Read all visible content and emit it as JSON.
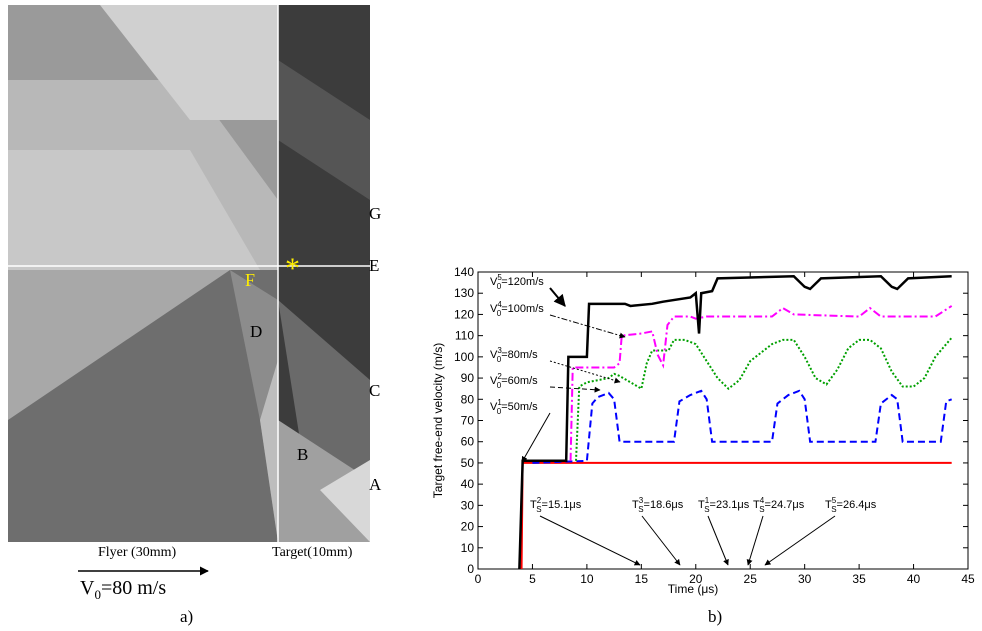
{
  "panel_a": {
    "labels": {
      "g": "G",
      "e": "E",
      "f": "F",
      "d": "D",
      "c": "C",
      "b": "B",
      "a": "A",
      "star": "*"
    },
    "flyer": "Flyer (30mm)",
    "target": "Target(10mm)",
    "velocity": {
      "main": "V",
      "sub": "0",
      "tail": "=80 m/s"
    },
    "caption": "a)"
  },
  "chart_data": {
    "type": "line",
    "caption": "b)",
    "x_label": "Time (μs)",
    "y_label": "Target free-end velocity (m/s)",
    "xlim": [
      0,
      45
    ],
    "xticks": [
      0,
      5,
      10,
      15,
      20,
      25,
      30,
      35,
      40,
      45
    ],
    "ylim": [
      0,
      140
    ],
    "yticks": [
      0,
      10,
      20,
      30,
      40,
      50,
      60,
      70,
      80,
      90,
      100,
      110,
      120,
      130,
      140
    ],
    "series": [
      {
        "color": "#ff0000",
        "dash": "solid",
        "x": [
          4,
          4.1,
          43.5
        ],
        "values": [
          0,
          50,
          50
        ]
      },
      {
        "color": "#0000ff",
        "dash": "dashed",
        "x": [
          5,
          10,
          10.5,
          11,
          12,
          12.5,
          13,
          18,
          18.5,
          19.5,
          20.5,
          21,
          21.5,
          27,
          27.5,
          28.5,
          29.5,
          30,
          30.5,
          36.5,
          37,
          38,
          38.5,
          39,
          42.5,
          43,
          43.5
        ],
        "values": [
          50,
          51,
          78,
          81,
          83,
          80,
          60,
          60,
          79,
          82,
          84,
          80,
          60,
          60,
          78,
          82,
          84,
          80,
          60,
          60,
          78,
          82,
          80,
          60,
          60,
          79,
          80
        ]
      },
      {
        "color": "#00a000",
        "dash": "dotted",
        "x": [
          9,
          9.3,
          10,
          12,
          12.5,
          13,
          14,
          15,
          15.5,
          16,
          17.5,
          18,
          19,
          20,
          21,
          22,
          23,
          24,
          25,
          27,
          28,
          29,
          30,
          31,
          32,
          33,
          34,
          35,
          36,
          37,
          38,
          39,
          40,
          41,
          42,
          43.5
        ],
        "values": [
          51,
          86,
          88,
          90,
          92,
          91,
          88,
          85,
          97,
          103,
          103,
          108,
          108,
          106,
          98,
          90,
          85,
          89,
          98,
          106,
          108,
          108,
          100,
          90,
          87,
          94,
          104,
          108,
          108,
          104,
          93,
          86,
          86,
          90,
          100,
          109
        ]
      },
      {
        "color": "#ff00ff",
        "dash": "dashdot",
        "x": [
          8.5,
          8.7,
          12.5,
          13,
          13.2,
          15,
          16,
          16.5,
          17,
          17.4,
          18,
          19.5,
          20,
          21,
          27,
          28,
          29,
          35,
          36,
          37,
          42,
          43.5
        ],
        "values": [
          51,
          95,
          95,
          97,
          110,
          111,
          112,
          101,
          96,
          115,
          119,
          119,
          118,
          119,
          119,
          123,
          120,
          119,
          123,
          119,
          119,
          124
        ]
      },
      {
        "color": "#000000",
        "dash": "solid",
        "x": [
          3.8,
          4.1,
          8.1,
          8.3,
          10,
          10.2,
          13.5,
          14,
          16,
          17,
          19.5,
          20,
          20.3,
          20.5,
          21.5,
          22,
          29,
          30,
          30.5,
          31.5,
          37,
          38,
          38.5,
          39.5,
          43.5
        ],
        "values": [
          0,
          51,
          51,
          100,
          100,
          125,
          125,
          124,
          125,
          126,
          128,
          130,
          111,
          130,
          131,
          137,
          138,
          133,
          132,
          137,
          138,
          133,
          132,
          137,
          138
        ]
      }
    ],
    "annotations": [
      {
        "main": "V",
        "sub": "0",
        "sup": "5",
        "tail": "=120m/s"
      },
      {
        "main": "V",
        "sub": "0",
        "sup": "4",
        "tail": "=100m/s"
      },
      {
        "main": "V",
        "sub": "0",
        "sup": "3",
        "tail": "=80m/s"
      },
      {
        "main": "V",
        "sub": "0",
        "sup": "2",
        "tail": "=60m/s"
      },
      {
        "main": "V",
        "sub": "0",
        "sup": "1",
        "tail": "=50m/s"
      },
      {
        "main": "T",
        "sub": "S",
        "sup": "2",
        "tail": "=15.1μs"
      },
      {
        "main": "T",
        "sub": "S",
        "sup": "3",
        "tail": "=18.6μs"
      },
      {
        "main": "T",
        "sub": "S",
        "sup": "1",
        "tail": "=23.1μs"
      },
      {
        "main": "T",
        "sub": "S",
        "sup": "4",
        "tail": "=24.7μs"
      },
      {
        "main": "T",
        "sub": "S",
        "sup": "5",
        "tail": "=26.4μs"
      }
    ]
  }
}
